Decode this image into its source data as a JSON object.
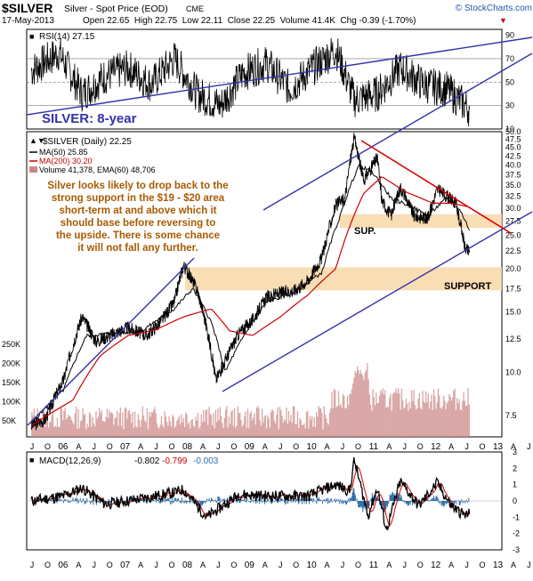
{
  "header": {
    "symbol": "$SILVER",
    "description": "Silver - Spot Price (EOD)",
    "exchange": "CME",
    "date": "17-May-2013",
    "ohlc_line": "Open 22.65  High 22.75  Low 22.11  Close 22.25  Volume 41.4K  Chg -0.39 (-1.70%)",
    "change_arrow": "▼",
    "watermark": "© StockCharts.com"
  },
  "annotations": {
    "chart_title": "SILVER: 8-year",
    "commentary": [
      "Silver looks likely to drop back to the",
      "strong support in the $19 - $20 area",
      "short-term at and above which it",
      "should base before reversing to",
      "the upside. There is some chance",
      "it will not fall any further."
    ],
    "sup_label": "SUP.",
    "support_label": "SUPPORT"
  },
  "colors": {
    "price": "#000000",
    "ma50": "#000000",
    "ma200": "#cc0000",
    "volume": "#cc8888",
    "channel": "#3333aa",
    "downtrend": "#dd0000",
    "support_zone": "#f8d7a8",
    "annotation_text": "#a85a00",
    "title_text": "#3333aa",
    "macd_signal": "#cc0000",
    "histogram": "#2f6fa8"
  },
  "chart_data": [
    {
      "type": "line",
      "panel": "RSI",
      "legend": "RSI(14) 27.15",
      "y_ticks": [
        10,
        30,
        50,
        70,
        90
      ],
      "ylim": [
        10,
        95
      ],
      "reference_lines": [
        30,
        50,
        70
      ],
      "dates": [
        "2005-06",
        "2005-12",
        "2006-05",
        "2006-10",
        "2007-03",
        "2007-08",
        "2008-01",
        "2008-06",
        "2008-11",
        "2009-04",
        "2009-09",
        "2010-02",
        "2010-07",
        "2010-12",
        "2011-04",
        "2011-09",
        "2012-02",
        "2012-07",
        "2012-12",
        "2013-05"
      ],
      "values": [
        60,
        75,
        40,
        55,
        62,
        48,
        70,
        40,
        30,
        58,
        66,
        44,
        62,
        78,
        35,
        40,
        62,
        48,
        44,
        27
      ]
    },
    {
      "type": "line",
      "panel": "Price",
      "scale": "log",
      "title": "$SILVER (Daily) 22.25",
      "legend": [
        "MA(50) 25.85",
        "MA(200) 30.20",
        "Volume 41,378, EMA(60) 48,706"
      ],
      "y_ticks": [
        7.5,
        10.0,
        12.5,
        15.0,
        17.5,
        20.0,
        22.5,
        25.0,
        27.5,
        30.0,
        32.5,
        35.0,
        37.5,
        40.0,
        42.5,
        45.0,
        47.5,
        50.0
      ],
      "volume_ticks": [
        "50K",
        "100K",
        "150K",
        "200K",
        "250K"
      ],
      "ylim": [
        6.5,
        50
      ],
      "x_tick_labels": [
        "J",
        "O",
        "06",
        "A",
        "J",
        "O",
        "07",
        "A",
        "J",
        "O",
        "08",
        "A",
        "J",
        "O",
        "09",
        "A",
        "J",
        "O",
        "10",
        "A",
        "J",
        "O",
        "11",
        "A",
        "J",
        "O",
        "12",
        "A",
        "J",
        "O",
        "13",
        "A",
        "J",
        "O"
      ],
      "year_labels": [
        "06",
        "07",
        "08",
        "09",
        "10",
        "11",
        "12",
        "13"
      ],
      "series": [
        {
          "name": "$SILVER",
          "dates": [
            "2005-06",
            "2005-09",
            "2006-01",
            "2006-05",
            "2006-08",
            "2006-12",
            "2007-03",
            "2007-07",
            "2007-10",
            "2008-01",
            "2008-03",
            "2008-06",
            "2008-08",
            "2008-10",
            "2008-12",
            "2009-03",
            "2009-06",
            "2009-09",
            "2009-12",
            "2010-03",
            "2010-06",
            "2010-09",
            "2010-12",
            "2011-02",
            "2011-04",
            "2011-06",
            "2011-09",
            "2011-10",
            "2011-12",
            "2012-02",
            "2012-05",
            "2012-08",
            "2012-10",
            "2012-12",
            "2013-02",
            "2013-04",
            "2013-05"
          ],
          "values": [
            7.0,
            7.3,
            9.5,
            14.5,
            12.3,
            13.0,
            13.5,
            12.8,
            14.0,
            16.0,
            20.5,
            17.3,
            13.5,
            9.5,
            10.8,
            13.0,
            14.2,
            16.5,
            17.0,
            17.3,
            18.5,
            21.5,
            30.5,
            32.0,
            48.0,
            36.0,
            42.0,
            31.5,
            28.5,
            34.5,
            28.5,
            28.0,
            34.0,
            32.5,
            31.0,
            23.0,
            22.25
          ]
        },
        {
          "name": "MA(50)",
          "dates": [
            "2005-06",
            "2006-01",
            "2006-06",
            "2006-12",
            "2007-06",
            "2008-01",
            "2008-05",
            "2008-09",
            "2008-12",
            "2009-04",
            "2009-09",
            "2010-03",
            "2010-09",
            "2011-01",
            "2011-05",
            "2011-08",
            "2011-12",
            "2012-04",
            "2012-08",
            "2012-12",
            "2013-03",
            "2013-05"
          ],
          "values": [
            7.1,
            8.9,
            12.8,
            13.0,
            13.2,
            15.3,
            17.5,
            14.0,
            10.0,
            12.7,
            16.0,
            17.0,
            19.5,
            28.5,
            40.0,
            38.0,
            32.0,
            30.5,
            28.5,
            32.0,
            29.5,
            25.85
          ]
        },
        {
          "name": "MA(200)",
          "dates": [
            "2005-06",
            "2006-03",
            "2006-09",
            "2007-03",
            "2007-09",
            "2008-03",
            "2008-09",
            "2009-01",
            "2009-06",
            "2009-12",
            "2010-06",
            "2010-12",
            "2011-06",
            "2011-10",
            "2012-03",
            "2012-09",
            "2013-01",
            "2013-05"
          ],
          "values": [
            7.0,
            8.3,
            11.2,
            12.8,
            13.3,
            14.5,
            15.3,
            13.2,
            12.8,
            14.5,
            16.8,
            20.0,
            33.0,
            37.0,
            33.5,
            31.0,
            31.0,
            30.2
          ]
        }
      ]
    },
    {
      "type": "line",
      "panel": "MACD",
      "legend": [
        "MACD(12,26,9)",
        "-0.802",
        "-0.799",
        "-0.003"
      ],
      "y_ticks": [
        -3,
        -2,
        -1,
        0,
        1,
        2,
        3
      ],
      "ylim": [
        -3,
        3
      ],
      "x_tick_labels": [
        "J",
        "O",
        "06",
        "A",
        "J",
        "O",
        "07",
        "A",
        "J",
        "O",
        "08",
        "A",
        "J",
        "O",
        "09",
        "A",
        "J",
        "O",
        "10",
        "A",
        "J",
        "O",
        "11",
        "A",
        "J",
        "O",
        "12",
        "A",
        "J",
        "O",
        "13",
        "A",
        "J",
        "O"
      ],
      "dates": [
        "2005-06",
        "2006-01",
        "2006-05",
        "2006-10",
        "2007-05",
        "2008-01",
        "2008-03",
        "2008-08",
        "2008-10",
        "2009-03",
        "2009-09",
        "2010-06",
        "2010-12",
        "2011-03",
        "2011-04",
        "2011-07",
        "2011-09",
        "2011-11",
        "2012-02",
        "2012-06",
        "2012-10",
        "2013-01",
        "2013-04",
        "2013-05"
      ],
      "values": [
        0,
        0.3,
        0.8,
        -0.2,
        0.1,
        0.5,
        0.7,
        -1.0,
        -0.6,
        0.4,
        0.3,
        0.3,
        1.0,
        0.6,
        2.5,
        -0.9,
        0.8,
        -1.8,
        1.2,
        -0.3,
        1.1,
        -0.3,
        -0.9,
        -0.8
      ]
    }
  ]
}
